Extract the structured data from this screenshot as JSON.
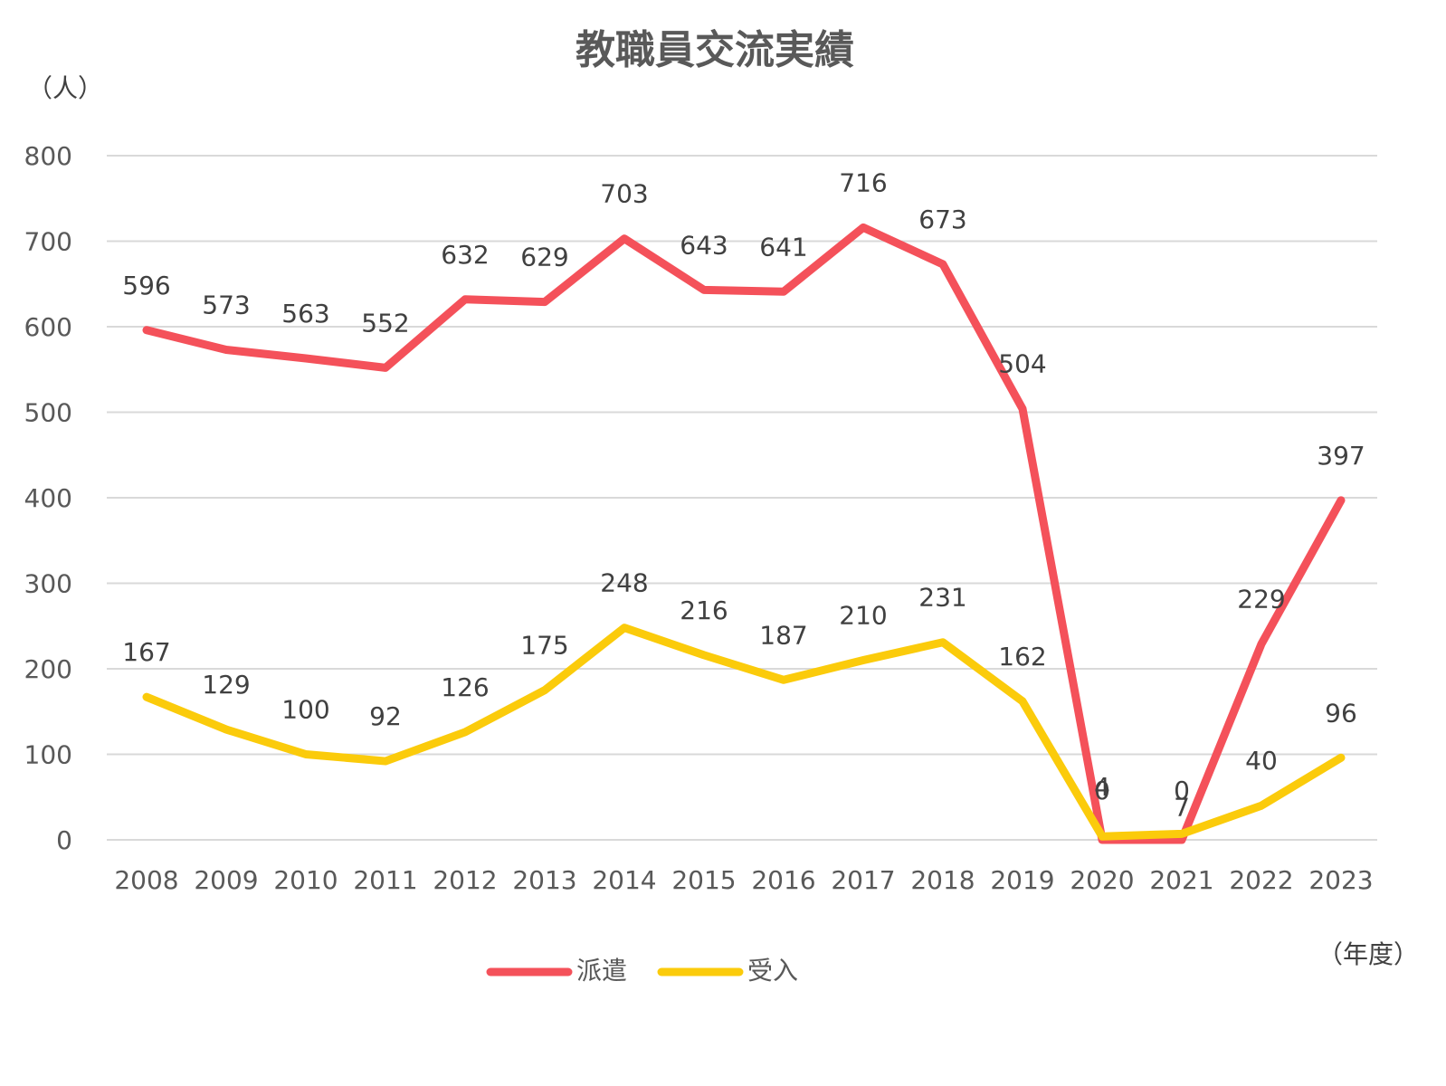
{
  "chart_data": {
    "type": "line",
    "title": "教職員交流実績",
    "y_unit_label": "（人）",
    "x_unit_label": "（年度）",
    "ylim": [
      0,
      800
    ],
    "yticks": [
      "0",
      "100",
      "200",
      "300",
      "400",
      "500",
      "600",
      "700",
      "800"
    ],
    "categories": [
      "2008",
      "2009",
      "2010",
      "2011",
      "2012",
      "2013",
      "2014",
      "2015",
      "2016",
      "2017",
      "2018",
      "2019",
      "2020",
      "2021",
      "2022",
      "2023"
    ],
    "grid": true,
    "legend_position": "bottom",
    "series": [
      {
        "name": "派遣",
        "color": "#f4515a",
        "values": [
          596,
          573,
          563,
          552,
          632,
          629,
          703,
          643,
          641,
          716,
          673,
          504,
          0,
          0,
          229,
          397
        ]
      },
      {
        "name": "受入",
        "color": "#fbcb0b",
        "values": [
          167,
          129,
          100,
          92,
          126,
          175,
          248,
          216,
          187,
          210,
          231,
          162,
          4,
          7,
          40,
          96
        ]
      }
    ]
  }
}
